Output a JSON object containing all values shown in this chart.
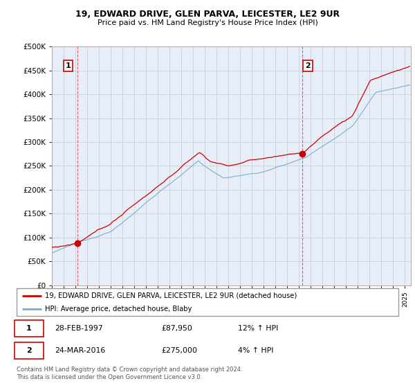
{
  "title1": "19, EDWARD DRIVE, GLEN PARVA, LEICESTER, LE2 9UR",
  "title2": "Price paid vs. HM Land Registry's House Price Index (HPI)",
  "yticks": [
    0,
    50000,
    100000,
    150000,
    200000,
    250000,
    300000,
    350000,
    400000,
    450000,
    500000
  ],
  "ytick_labels": [
    "£0",
    "£50K",
    "£100K",
    "£150K",
    "£200K",
    "£250K",
    "£300K",
    "£350K",
    "£400K",
    "£450K",
    "£500K"
  ],
  "xlim_start": 1995.0,
  "xlim_end": 2025.5,
  "ylim_min": 0,
  "ylim_max": 500000,
  "sale1_x": 1997.167,
  "sale1_y": 87950,
  "sale1_label": "1",
  "sale1_date": "28-FEB-1997",
  "sale1_price": "£87,950",
  "sale1_hpi": "12% ↑ HPI",
  "sale2_x": 2016.25,
  "sale2_y": 275000,
  "sale2_label": "2",
  "sale2_date": "24-MAR-2016",
  "sale2_price": "£275,000",
  "sale2_hpi": "4% ↑ HPI",
  "line1_color": "#cc0000",
  "line2_color": "#7aadd4",
  "bg_color": "#e8eef8",
  "plot_bg": "#ffffff",
  "grid_color": "#c8d0dc",
  "legend1_label": "19, EDWARD DRIVE, GLEN PARVA, LEICESTER, LE2 9UR (detached house)",
  "legend2_label": "HPI: Average price, detached house, Blaby",
  "footer": "Contains HM Land Registry data © Crown copyright and database right 2024.\nThis data is licensed under the Open Government Licence v3.0.",
  "xtick_years": [
    1995,
    1996,
    1997,
    1998,
    1999,
    2000,
    2001,
    2002,
    2003,
    2004,
    2005,
    2006,
    2007,
    2008,
    2009,
    2010,
    2011,
    2012,
    2013,
    2014,
    2015,
    2016,
    2017,
    2018,
    2019,
    2020,
    2021,
    2022,
    2023,
    2024,
    2025
  ]
}
